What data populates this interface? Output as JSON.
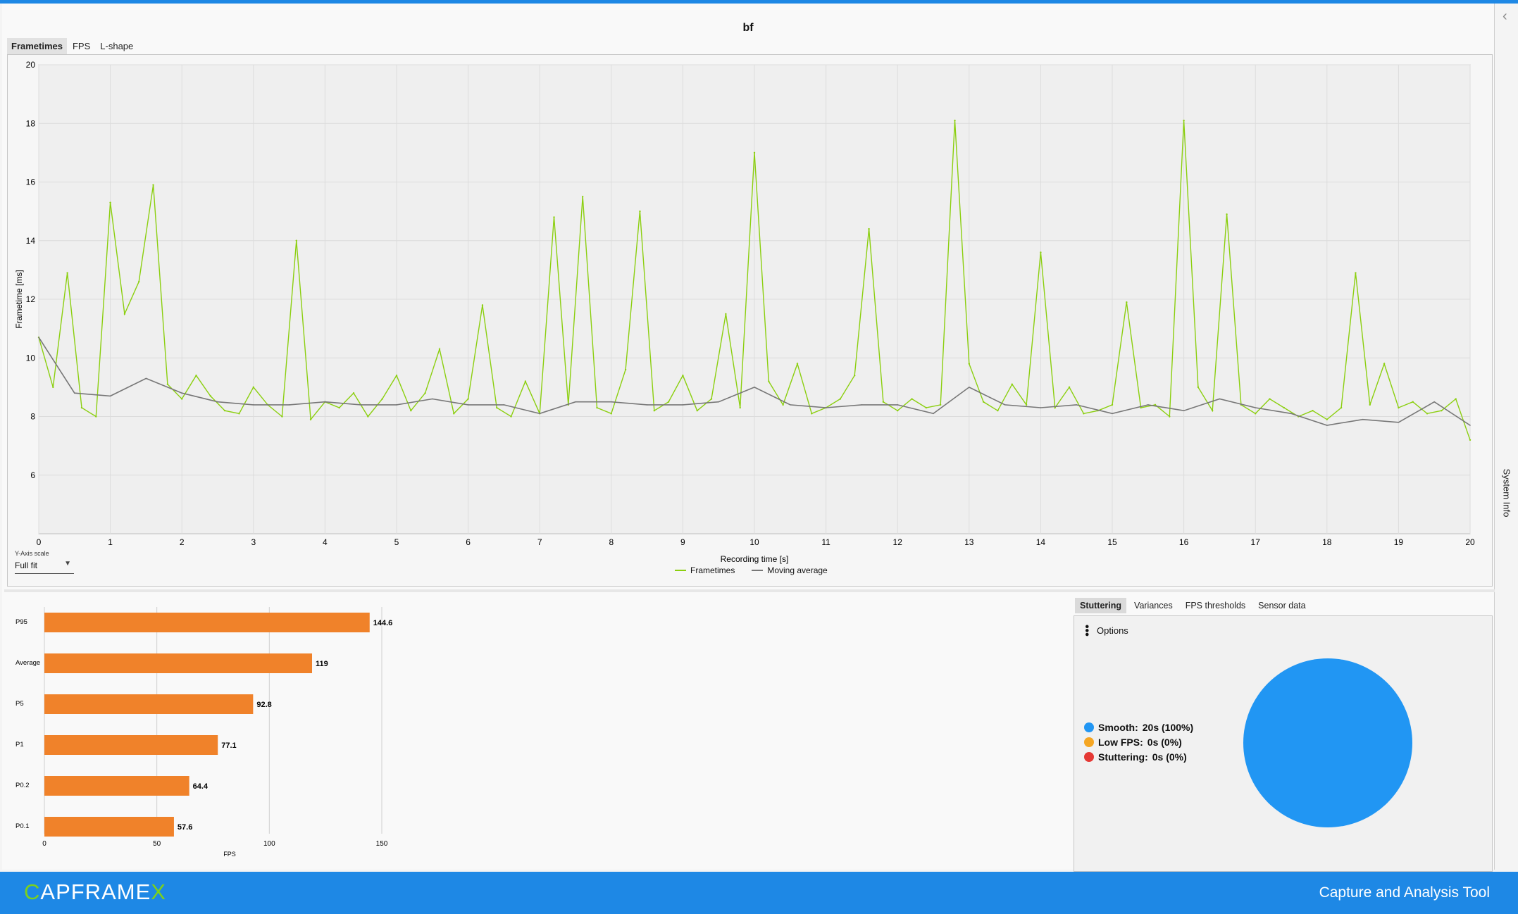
{
  "app": {
    "chart_title": "bf",
    "tabs": [
      "Frametimes",
      "FPS",
      "L-shape"
    ],
    "active_tab": "Frametimes",
    "side_panel_label": "System Info",
    "y_axis_scale": {
      "label": "Y-Axis scale",
      "value": "Full fit"
    },
    "stats_tabs": [
      "Stuttering",
      "Variances",
      "FPS thresholds",
      "Sensor data"
    ],
    "stats_active_tab": "Stuttering",
    "options_label": "Options",
    "footer": {
      "logo_prefix": "C",
      "logo_mid": "APFRAME",
      "logo_suffix": "X",
      "tagline": "Capture and Analysis Tool"
    }
  },
  "colors": {
    "accent": "#1e88e5",
    "frametimes": "#8bcf0f",
    "moving_average": "#777777",
    "bar": "#f0822a",
    "smooth": "#2196f3",
    "low_fps": "#f5a623",
    "stuttering": "#e53935"
  },
  "chart_data": [
    {
      "type": "line",
      "xlabel": "Recording time [s]",
      "ylabel": "Frametime [ms]",
      "xlim": [
        0,
        20
      ],
      "ylim": [
        4,
        20
      ],
      "x_ticks": [
        0,
        1,
        2,
        3,
        4,
        5,
        6,
        7,
        8,
        9,
        10,
        11,
        12,
        13,
        14,
        15,
        16,
        17,
        18,
        19,
        20
      ],
      "y_ticks": [
        6,
        8,
        10,
        12,
        14,
        16,
        18,
        20
      ],
      "grid": true,
      "legend_position": "bottom-center",
      "series": [
        {
          "name": "Frametimes",
          "x": [
            0,
            0.2,
            0.4,
            0.6,
            0.8,
            1.0,
            1.2,
            1.4,
            1.6,
            1.8,
            2.0,
            2.2,
            2.4,
            2.6,
            2.8,
            3.0,
            3.2,
            3.4,
            3.6,
            3.8,
            4.0,
            4.2,
            4.4,
            4.6,
            4.8,
            5.0,
            5.2,
            5.4,
            5.6,
            5.8,
            6.0,
            6.2,
            6.4,
            6.6,
            6.8,
            7.0,
            7.2,
            7.4,
            7.6,
            7.8,
            8.0,
            8.2,
            8.4,
            8.6,
            8.8,
            9.0,
            9.2,
            9.4,
            9.6,
            9.8,
            10.0,
            10.2,
            10.4,
            10.6,
            10.8,
            11.0,
            11.2,
            11.4,
            11.6,
            11.8,
            12.0,
            12.2,
            12.4,
            12.6,
            12.8,
            13.0,
            13.2,
            13.4,
            13.6,
            13.8,
            14.0,
            14.2,
            14.4,
            14.6,
            14.8,
            15.0,
            15.2,
            15.4,
            15.6,
            15.8,
            16.0,
            16.2,
            16.4,
            16.6,
            16.8,
            17.0,
            17.2,
            17.4,
            17.6,
            17.8,
            18.0,
            18.2,
            18.4,
            18.6,
            18.8,
            19.0,
            19.2,
            19.4,
            19.6,
            19.8,
            20.0
          ],
          "y": [
            10.7,
            9.0,
            12.9,
            8.3,
            8.0,
            15.3,
            11.5,
            12.6,
            15.9,
            9.1,
            8.6,
            9.4,
            8.7,
            8.2,
            8.1,
            9.0,
            8.4,
            8.0,
            14.0,
            7.9,
            8.5,
            8.3,
            8.8,
            8.0,
            8.6,
            9.4,
            8.2,
            8.8,
            10.3,
            8.1,
            8.6,
            11.8,
            8.3,
            8.0,
            9.2,
            8.1,
            14.8,
            8.4,
            15.5,
            8.3,
            8.1,
            9.6,
            15.0,
            8.2,
            8.5,
            9.4,
            8.2,
            8.6,
            11.5,
            8.3,
            17.0,
            9.2,
            8.4,
            9.8,
            8.1,
            8.3,
            8.6,
            9.4,
            14.4,
            8.5,
            8.2,
            8.6,
            8.3,
            8.4,
            18.1,
            9.8,
            8.5,
            8.2,
            9.1,
            8.4,
            13.6,
            8.3,
            9.0,
            8.1,
            8.2,
            8.4,
            11.9,
            8.3,
            8.4,
            8.0,
            18.1,
            9.0,
            8.2,
            14.9,
            8.4,
            8.1,
            8.6,
            8.3,
            8.0,
            8.2,
            7.9,
            8.3,
            12.9,
            8.4,
            9.8,
            8.3,
            8.5,
            8.1,
            8.2,
            8.6,
            7.2
          ]
        },
        {
          "name": "Moving average",
          "x": [
            0,
            0.5,
            1,
            1.5,
            2,
            2.5,
            3,
            3.5,
            4,
            4.5,
            5,
            5.5,
            6,
            6.5,
            7,
            7.5,
            8,
            8.5,
            9,
            9.5,
            10,
            10.5,
            11,
            11.5,
            12,
            12.5,
            13,
            13.5,
            14,
            14.5,
            15,
            15.5,
            16,
            16.5,
            17,
            17.5,
            18,
            18.5,
            19,
            19.5,
            20
          ],
          "y": [
            10.7,
            8.8,
            8.7,
            9.3,
            8.8,
            8.5,
            8.4,
            8.4,
            8.5,
            8.4,
            8.4,
            8.6,
            8.4,
            8.4,
            8.1,
            8.5,
            8.5,
            8.4,
            8.4,
            8.5,
            9.0,
            8.4,
            8.3,
            8.4,
            8.4,
            8.1,
            9.0,
            8.4,
            8.3,
            8.4,
            8.1,
            8.4,
            8.2,
            8.6,
            8.3,
            8.1,
            7.7,
            7.9,
            7.8,
            8.5,
            7.7
          ]
        }
      ]
    },
    {
      "type": "bar",
      "orientation": "horizontal",
      "categories": [
        "P95",
        "Average",
        "P5",
        "P1",
        "P0.2",
        "P0.1"
      ],
      "values": [
        144.6,
        119,
        92.8,
        77.1,
        64.4,
        57.6
      ],
      "value_labels": [
        "144.6",
        "119",
        "92.8",
        "77.1",
        "64.4",
        "57.6"
      ],
      "xlabel": "FPS",
      "xlim": [
        0,
        150
      ],
      "x_ticks": [
        0,
        50,
        100,
        150
      ]
    },
    {
      "type": "pie",
      "slices": [
        {
          "label": "Smooth:",
          "value_text": "20s (100%)",
          "value": 100,
          "color": "#2196f3"
        },
        {
          "label": "Low FPS:",
          "value_text": "0s (0%)",
          "value": 0,
          "color": "#f5a623"
        },
        {
          "label": "Stuttering:",
          "value_text": "0s (0%)",
          "value": 0,
          "color": "#e53935"
        }
      ]
    }
  ]
}
